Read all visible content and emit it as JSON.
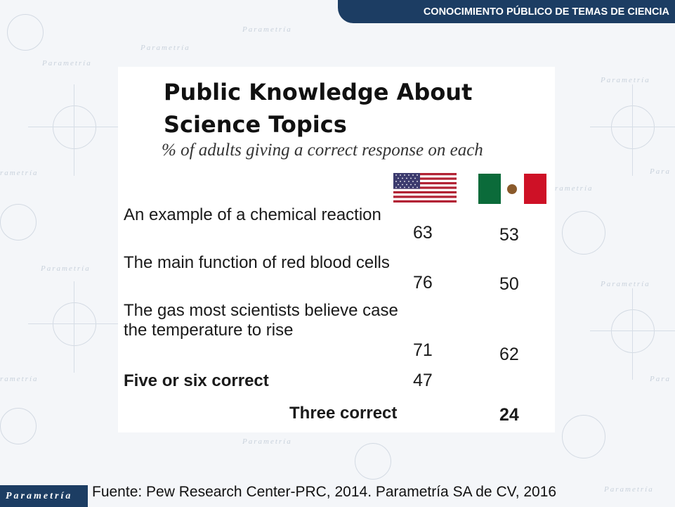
{
  "header": {
    "banner_text": "CONOCIMIENTO PÚBLICO DE TEMAS DE CIENCIA"
  },
  "slide": {
    "title": "Public Knowledge About Science Topics",
    "subtitle": "% of adults giving a correct response on each",
    "columns": [
      {
        "flag": "us-flag-icon"
      },
      {
        "flag": "mexico-flag-icon"
      }
    ],
    "rows": [
      {
        "label": "An example of a chemical reaction",
        "us": "63",
        "mx": "53"
      },
      {
        "label": "The main function of red blood cells",
        "us": "76",
        "mx": "50"
      },
      {
        "label": "The gas most scientists believe case the temperature to rise",
        "us": "71",
        "mx": "62"
      },
      {
        "label": "Five or six correct",
        "us": "47",
        "mx": ""
      },
      {
        "label": "Three correct",
        "us": "",
        "mx": "24"
      }
    ]
  },
  "footer": {
    "logo_text": "Parametría",
    "source": "Fuente: Pew Research Center-PRC, 2014. Parametría SA de CV, 2016"
  },
  "colors": {
    "banner": "#1c3d63",
    "us_red": "#b22234",
    "us_blue": "#3c3b6e",
    "mx_green": "#0b6b3a",
    "mx_red": "#ce1126"
  }
}
